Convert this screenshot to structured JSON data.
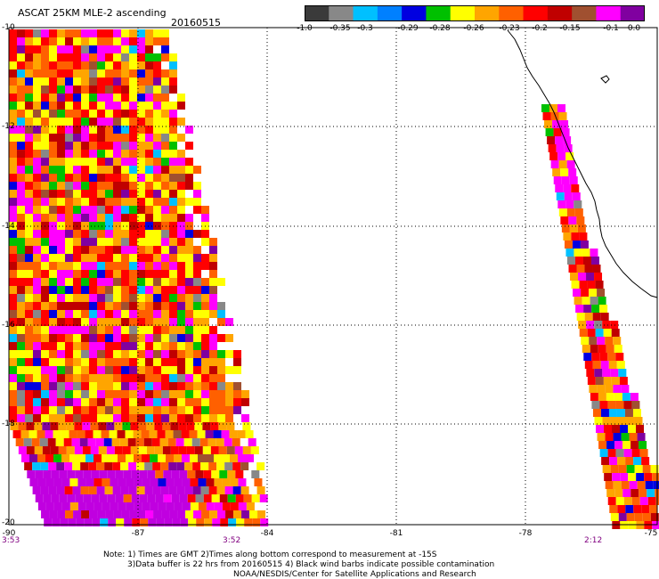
{
  "header": {
    "title": "ASCAT 25KM MLE-2 ascending",
    "date": "20160515"
  },
  "colorbar": {
    "labels": [
      "-1.0",
      "-0.35",
      "-0.3",
      "-0.29",
      "-0.28",
      "-0.26",
      "-0.23",
      "-0.2",
      "-0.15",
      "-0.1",
      "0.0"
    ],
    "colors": [
      "#3a3a3a",
      "#00b0ff",
      "#0040ff",
      "#00c000",
      "#ffff00",
      "#ffa500",
      "#ff6000",
      "#ff0000",
      "#a05030",
      "#ff00ff",
      "#8000a0"
    ]
  },
  "axes": {
    "lat_labels": [
      "-10",
      "-12",
      "-14",
      "-16",
      "-18",
      "-20"
    ],
    "lon_labels": [
      "-90",
      "-87",
      "-84",
      "-81",
      "-78",
      "-75"
    ],
    "lat_range": [
      -20,
      -10
    ],
    "lon_range": [
      -90,
      -75
    ],
    "grid": "dotted"
  },
  "times": {
    "left": "3:53",
    "middle": "3:52",
    "right": "2:12"
  },
  "notes": {
    "line1": "Note: 1) Times are GMT 2)Times along bottom correspond to measurement at -15S",
    "line2": "3)Data buffer is 22 hrs from 20160515 4) Black wind barbs indicate possible contamination",
    "line3": "NOAA/NESDIS/Center for Satellite Applications and Research"
  }
}
